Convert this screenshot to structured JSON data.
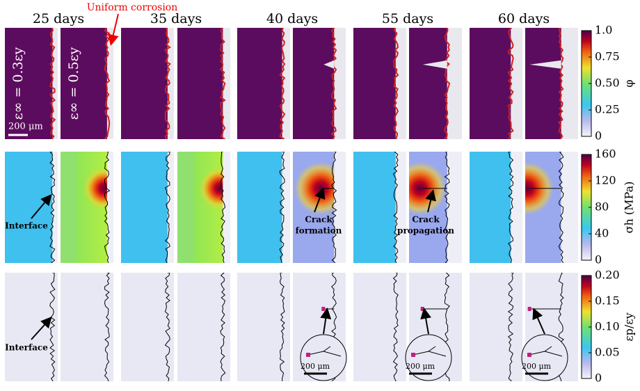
{
  "column_titles": [
    "25 days",
    "35 days",
    "40 days",
    "55 days",
    "60 days"
  ],
  "top_annotation": "Uniform corrosion",
  "strain_labels": [
    "ε∞ = 0.3εy",
    "ε∞ = 0.5εy"
  ],
  "scale_bar": "200 μm",
  "rows": [
    {
      "colorbar": {
        "label": "φ",
        "ticks": [
          "1.0",
          "0.75",
          "0.50",
          "0.25",
          "0"
        ]
      }
    },
    {
      "colorbar": {
        "label": "σh (MPa)",
        "ticks": [
          "160",
          "120",
          "80",
          "40",
          "0"
        ]
      },
      "annotations": {
        "interface": "Interface",
        "crack_formation": [
          "Crack",
          "formation"
        ],
        "crack_propagation": [
          "Crack",
          "propagation"
        ]
      }
    },
    {
      "colorbar": {
        "label": "εp/εy",
        "ticks": [
          "0.20",
          "0.15",
          "0.10",
          "0.05",
          "0"
        ]
      },
      "annotations": {
        "interface": "Interface"
      },
      "inset_scale_bars": [
        "200 μm",
        "200 μm",
        "200 μm"
      ]
    }
  ]
}
